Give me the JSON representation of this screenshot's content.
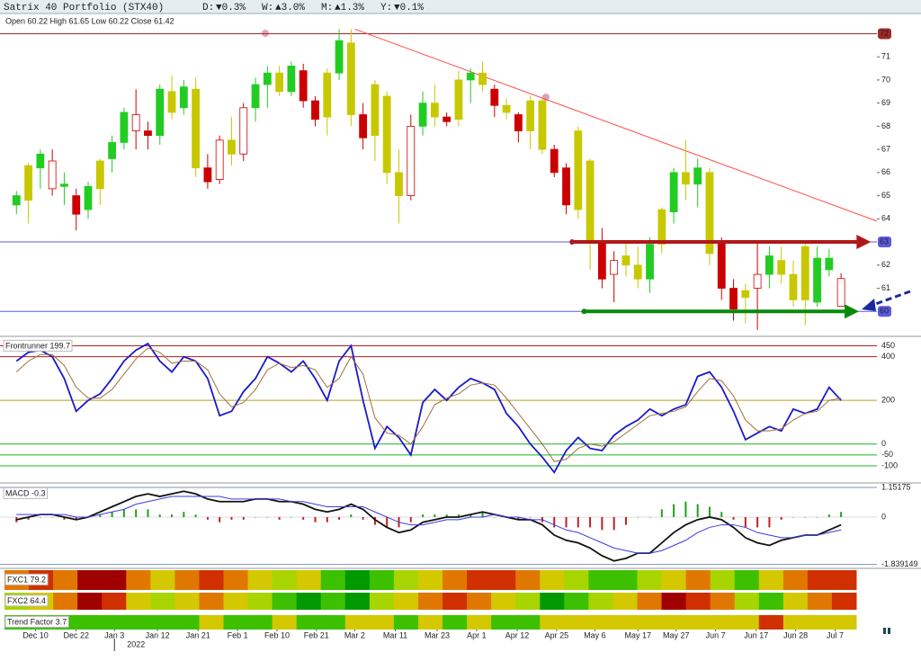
{
  "header": {
    "title": "Satrix 40 Portfolio (STX40)",
    "changes": [
      {
        "label": "D:",
        "value": "▼0.3%",
        "color": "#d42020"
      },
      {
        "label": "W:",
        "value": "▲3.0%",
        "color": "#1a9a1a"
      },
      {
        "label": "M:",
        "value": "▲1.3%",
        "color": "#1a9a1a"
      },
      {
        "label": "Y:",
        "value": "▼0.1%",
        "color": "#d42020"
      }
    ]
  },
  "heat_palette": {
    "G": "#009a00",
    "g": "#3cc000",
    "l": "#a8d400",
    "y": "#d4c800",
    "o": "#e07800",
    "r": "#d03000",
    "R": "#a00000"
  },
  "chart_data": [
    {
      "type": "candlestick",
      "ohlc_text": "Open 60.22  High 61.65  Low 60.22  Close 61.42",
      "xlim": [
        -1,
        72
      ],
      "xticks": [
        {
          "value": 1.6,
          "label": "Dec 10"
        },
        {
          "value": 5,
          "label": "Dec 22"
        },
        {
          "value": 8.2,
          "label": "Jan 3"
        },
        {
          "value": 11.8,
          "label": "Jan 12"
        },
        {
          "value": 15.2,
          "label": "Jan 21"
        },
        {
          "value": 18.5,
          "label": "Feb 1"
        },
        {
          "value": 21.8,
          "label": "Feb 10"
        },
        {
          "value": 25.1,
          "label": "Feb 21"
        },
        {
          "value": 28.3,
          "label": "Mar 2"
        },
        {
          "value": 31.7,
          "label": "Mar 11"
        },
        {
          "value": 35.2,
          "label": "Mar 23"
        },
        {
          "value": 38.5,
          "label": "Apr 1"
        },
        {
          "value": 41.9,
          "label": "Apr 12"
        },
        {
          "value": 45.2,
          "label": "Apr 25"
        },
        {
          "value": 48.4,
          "label": "May 6"
        },
        {
          "value": 52,
          "label": "May 17"
        },
        {
          "value": 55.2,
          "label": "May 27"
        },
        {
          "value": 58.5,
          "label": "Jun 7"
        },
        {
          "value": 61.9,
          "label": "Jun 17"
        },
        {
          "value": 65.2,
          "label": "Jun 28"
        },
        {
          "value": 68.5,
          "label": "Jul 7"
        }
      ],
      "year_marks": [
        {
          "value": 8.2,
          "label": "2022"
        }
      ],
      "ylim": [
        59,
        72.6
      ],
      "yticks": [
        61,
        62,
        64,
        65,
        66,
        67,
        68,
        69,
        70,
        71
      ],
      "levels": [
        {
          "value": 72,
          "color": "#a02828"
        },
        {
          "value": 63,
          "color": "#5a5ae0"
        },
        {
          "value": 60,
          "color": "#5a5ae0"
        }
      ],
      "palette": {
        "g": "#22cc22",
        "y": "#c8c800",
        "r": "#cc0000",
        "w": "#ffffff"
      },
      "hollow_outline": "#cc0000",
      "candles": [
        [
          64.6,
          65.2,
          64.2,
          65.0
        ],
        [
          64.8,
          66.4,
          63.8,
          66.3
        ],
        [
          66.2,
          67.0,
          65.3,
          66.8
        ],
        [
          66.5,
          67.0,
          65.0,
          65.3
        ],
        [
          65.4,
          66.0,
          64.6,
          65.5
        ],
        [
          65.0,
          65.3,
          63.5,
          64.2
        ],
        [
          64.4,
          65.6,
          64.0,
          65.4
        ],
        [
          65.3,
          66.6,
          64.6,
          66.5
        ],
        [
          66.6,
          67.6,
          66.0,
          67.3
        ],
        [
          67.3,
          68.8,
          67.0,
          68.6
        ],
        [
          68.5,
          69.6,
          67.0,
          67.8
        ],
        [
          67.8,
          68.2,
          67.0,
          67.6
        ],
        [
          67.6,
          69.8,
          67.2,
          69.6
        ],
        [
          69.5,
          70.2,
          68.3,
          68.6
        ],
        [
          68.8,
          70.0,
          68.5,
          69.7
        ],
        [
          69.6,
          70.1,
          65.8,
          66.2
        ],
        [
          66.2,
          66.8,
          65.3,
          65.6
        ],
        [
          65.7,
          67.6,
          65.5,
          67.4
        ],
        [
          67.4,
          68.4,
          66.3,
          66.8
        ],
        [
          66.8,
          69.0,
          66.5,
          68.8
        ],
        [
          68.8,
          70.1,
          68.2,
          69.8
        ],
        [
          69.8,
          70.6,
          68.8,
          70.3
        ],
        [
          70.3,
          70.6,
          69.3,
          69.5
        ],
        [
          69.5,
          70.8,
          69.3,
          70.6
        ],
        [
          70.4,
          70.7,
          68.8,
          69.1
        ],
        [
          69.1,
          69.3,
          68.0,
          68.3
        ],
        [
          68.4,
          70.5,
          67.6,
          70.3
        ],
        [
          70.3,
          72.2,
          70.0,
          71.7
        ],
        [
          71.6,
          72.2,
          68.0,
          68.5
        ],
        [
          68.5,
          69.0,
          67.0,
          67.5
        ],
        [
          67.6,
          70.0,
          66.5,
          69.8
        ],
        [
          69.3,
          69.5,
          65.5,
          66.0
        ],
        [
          66.0,
          67.0,
          63.8,
          65.0
        ],
        [
          65.0,
          68.5,
          64.8,
          68.0
        ],
        [
          68.0,
          69.5,
          67.6,
          69.0
        ],
        [
          69.0,
          69.8,
          68.0,
          68.4
        ],
        [
          68.4,
          68.6,
          68.0,
          68.2
        ],
        [
          68.3,
          70.4,
          68.0,
          70.0
        ],
        [
          70.0,
          70.5,
          69.0,
          70.3
        ],
        [
          70.3,
          70.8,
          69.5,
          69.8
        ],
        [
          69.6,
          69.8,
          68.4,
          68.9
        ],
        [
          68.9,
          69.2,
          68.3,
          68.6
        ],
        [
          68.5,
          68.6,
          67.3,
          67.8
        ],
        [
          67.8,
          69.3,
          67.0,
          69.1
        ],
        [
          69.1,
          69.2,
          66.8,
          67.0
        ],
        [
          67.0,
          67.2,
          65.8,
          66.0
        ],
        [
          66.2,
          66.4,
          64.2,
          64.6
        ],
        [
          64.4,
          68.0,
          64.0,
          67.8
        ],
        [
          66.5,
          66.6,
          61.8,
          63.0
        ],
        [
          63.0,
          63.6,
          61.0,
          61.4
        ],
        [
          61.6,
          62.6,
          60.4,
          62.2
        ],
        [
          62.4,
          63.0,
          61.5,
          62.0
        ],
        [
          62.0,
          62.8,
          61.0,
          61.4
        ],
        [
          61.4,
          63.2,
          60.8,
          62.9
        ],
        [
          62.9,
          64.5,
          62.5,
          64.4
        ],
        [
          64.3,
          66.2,
          63.8,
          66.0
        ],
        [
          66.0,
          67.4,
          64.8,
          65.5
        ],
        [
          65.5,
          66.6,
          64.5,
          66.2
        ],
        [
          66.0,
          66.2,
          62.0,
          62.5
        ],
        [
          63.0,
          63.2,
          60.5,
          61.0
        ],
        [
          61.0,
          61.4,
          59.6,
          60.1
        ],
        [
          60.6,
          61.2,
          59.5,
          60.9
        ],
        [
          61.0,
          63.0,
          59.2,
          61.6
        ],
        [
          61.6,
          62.8,
          61.0,
          62.4
        ],
        [
          62.2,
          62.8,
          61.2,
          61.6
        ],
        [
          61.6,
          62.2,
          60.2,
          60.5
        ],
        [
          60.5,
          63.0,
          59.4,
          62.8
        ],
        [
          60.4,
          62.8,
          60.2,
          62.3
        ],
        [
          62.3,
          62.7,
          61.5,
          61.8
        ],
        [
          60.22,
          61.65,
          60.22,
          61.42
        ]
      ],
      "colors": [
        "g",
        "y",
        "g",
        "w",
        "g",
        "r",
        "g",
        "y",
        "g",
        "g",
        "w",
        "r",
        "g",
        "y",
        "g",
        "y",
        "r",
        "w",
        "y",
        "w",
        "g",
        "g",
        "y",
        "g",
        "r",
        "r",
        "y",
        "g",
        "y",
        "r",
        "y",
        "y",
        "y",
        "w",
        "g",
        "y",
        "r",
        "y",
        "g",
        "y",
        "r",
        "y",
        "r",
        "y",
        "y",
        "r",
        "r",
        "y",
        "y",
        "r",
        "w",
        "y",
        "y",
        "g",
        "y",
        "g",
        "y",
        "g",
        "y",
        "r",
        "r",
        "y",
        "w",
        "g",
        "y",
        "y",
        "y",
        "g",
        "g",
        "w"
      ],
      "trendline": {
        "x": [
          28.3,
          72
        ],
        "y": [
          72.2,
          63.9
        ],
        "color": "#ff4a4a"
      },
      "arrows": [
        {
          "x": [
            46.5,
            71.5
          ],
          "y": 63,
          "color": "#b01818"
        },
        {
          "x": [
            47.5,
            70.5
          ],
          "y": 60,
          "color": "#0a8a0a"
        }
      ]
    },
    {
      "type": "line",
      "label": "Frontrunner 199.7",
      "ylim": [
        -170,
        485
      ],
      "yticks": [
        450,
        400,
        200,
        0,
        -50,
        -100
      ],
      "tick_colors": [
        "#b02020",
        "#b02020",
        "#b0a020",
        "#20b020",
        "#20b020",
        "#20b020"
      ],
      "series": [
        {
          "color": "#1a1acc",
          "values": [
            380,
            420,
            430,
            400,
            300,
            150,
            200,
            230,
            300,
            380,
            430,
            460,
            380,
            330,
            400,
            380,
            300,
            130,
            150,
            240,
            300,
            400,
            370,
            330,
            380,
            300,
            200,
            380,
            450,
            200,
            -20,
            80,
            30,
            -50,
            190,
            250,
            200,
            260,
            300,
            280,
            250,
            140,
            80,
            0,
            -60,
            -130,
            -30,
            30,
            -20,
            -30,
            40,
            80,
            110,
            160,
            130,
            160,
            180,
            310,
            330,
            260,
            150,
            20,
            50,
            80,
            60,
            160,
            140,
            160,
            260,
            200
          ]
        },
        {
          "color": "#a0703c",
          "values": [
            330,
            380,
            410,
            410,
            360,
            260,
            210,
            210,
            250,
            320,
            390,
            440,
            420,
            370,
            380,
            380,
            340,
            230,
            170,
            190,
            250,
            340,
            370,
            350,
            360,
            340,
            260,
            300,
            400,
            320,
            120,
            50,
            40,
            0,
            80,
            180,
            210,
            230,
            270,
            280,
            270,
            210,
            140,
            70,
            0,
            -80,
            -70,
            -20,
            0,
            -10,
            10,
            50,
            90,
            130,
            140,
            150,
            170,
            240,
            300,
            290,
            220,
            110,
            60,
            60,
            70,
            110,
            140,
            150,
            200,
            210
          ]
        }
      ]
    },
    {
      "type": "line",
      "label": "MACD -0.3",
      "ylim": [
        -1.92,
        1.22
      ],
      "yticks": [
        1.15175,
        0,
        -1.839149
      ],
      "tick_colors": [
        "#8090b0",
        "#dddddd",
        "#8090b0"
      ],
      "series": [
        {
          "color": "#111111",
          "values": [
            -0.1,
            0.0,
            0.1,
            0.1,
            0.0,
            -0.1,
            0.0,
            0.2,
            0.4,
            0.6,
            0.8,
            0.9,
            0.8,
            0.9,
            1.0,
            0.9,
            0.7,
            0.6,
            0.6,
            0.6,
            0.7,
            0.7,
            0.6,
            0.6,
            0.5,
            0.3,
            0.2,
            0.3,
            0.5,
            0.3,
            -0.1,
            -0.4,
            -0.6,
            -0.5,
            -0.2,
            -0.1,
            0.0,
            0.0,
            0.1,
            0.2,
            0.1,
            0.0,
            -0.1,
            -0.1,
            -0.3,
            -0.7,
            -0.9,
            -1.0,
            -1.2,
            -1.5,
            -1.7,
            -1.6,
            -1.4,
            -1.4,
            -1.0,
            -0.6,
            -0.3,
            -0.1,
            0.0,
            -0.1,
            -0.4,
            -0.8,
            -1.0,
            -1.1,
            -0.9,
            -0.8,
            -0.7,
            -0.7,
            -0.5,
            -0.3
          ]
        },
        {
          "color": "#3a3ae0",
          "values": [
            0.1,
            0.1,
            0.1,
            0.1,
            0.1,
            0.0,
            0.0,
            0.1,
            0.2,
            0.3,
            0.5,
            0.6,
            0.7,
            0.8,
            0.8,
            0.8,
            0.8,
            0.8,
            0.7,
            0.7,
            0.7,
            0.7,
            0.7,
            0.6,
            0.6,
            0.5,
            0.4,
            0.4,
            0.4,
            0.4,
            0.2,
            0.0,
            -0.2,
            -0.3,
            -0.3,
            -0.2,
            -0.1,
            -0.1,
            0.0,
            0.0,
            0.1,
            0.0,
            0.0,
            -0.1,
            -0.1,
            -0.3,
            -0.5,
            -0.6,
            -0.8,
            -1.0,
            -1.2,
            -1.3,
            -1.4,
            -1.4,
            -1.3,
            -1.1,
            -0.9,
            -0.6,
            -0.4,
            -0.3,
            -0.3,
            -0.4,
            -0.6,
            -0.7,
            -0.8,
            -0.8,
            -0.7,
            -0.7,
            -0.6,
            -0.5
          ]
        }
      ],
      "histogram": {
        "up": "#20a020",
        "down": "#c02020",
        "values": [
          -0.2,
          -0.1,
          0,
          0,
          -0.1,
          -0.1,
          0,
          0.1,
          0.2,
          0.3,
          0.3,
          0.3,
          0.1,
          0.1,
          0.2,
          0.1,
          -0.1,
          -0.2,
          -0.1,
          -0.1,
          0,
          0,
          -0.1,
          0,
          -0.1,
          -0.2,
          -0.2,
          -0.1,
          0.1,
          -0.1,
          -0.3,
          -0.4,
          -0.4,
          -0.2,
          0.1,
          0.1,
          0.1,
          0.1,
          0.1,
          0.2,
          0,
          0,
          -0.1,
          0,
          -0.2,
          -0.4,
          -0.4,
          -0.4,
          -0.4,
          -0.5,
          -0.5,
          -0.3,
          0,
          0,
          0.3,
          0.5,
          0.6,
          0.5,
          0.4,
          0.2,
          -0.1,
          -0.4,
          -0.4,
          -0.4,
          -0.1,
          0,
          0,
          0,
          0.1,
          0.2
        ]
      }
    },
    {
      "type": "heatmap",
      "label": "FXC1 79.2",
      "cells": [
        "o",
        "r",
        "o",
        "R",
        "R",
        "o",
        "y",
        "o",
        "r",
        "o",
        "y",
        "l",
        "y",
        "g",
        "G",
        "g",
        "l",
        "y",
        "o",
        "r",
        "r",
        "o",
        "y",
        "l",
        "g",
        "g",
        "l",
        "y",
        "o",
        "l",
        "g",
        "y",
        "o",
        "r",
        "r"
      ]
    },
    {
      "type": "heatmap",
      "label": "FXC2 64.4",
      "cells": [
        "l",
        "y",
        "o",
        "R",
        "r",
        "y",
        "l",
        "y",
        "o",
        "y",
        "l",
        "g",
        "G",
        "g",
        "G",
        "l",
        "y",
        "o",
        "r",
        "o",
        "y",
        "l",
        "G",
        "g",
        "l",
        "y",
        "o",
        "R",
        "r",
        "o",
        "l",
        "g",
        "y",
        "o",
        "r"
      ]
    },
    {
      "type": "heatmap",
      "label": "Trend Factor 3.7",
      "cells": [
        "g",
        "g",
        "g",
        "g",
        "g",
        "g",
        "g",
        "g",
        "y",
        "g",
        "g",
        "y",
        "g",
        "g",
        "y",
        "y",
        "g",
        "y",
        "g",
        "y",
        "g",
        "g",
        "y",
        "y",
        "y",
        "y",
        "y",
        "y",
        "y",
        "y",
        "y",
        "r",
        "y",
        "y",
        "y"
      ]
    }
  ]
}
